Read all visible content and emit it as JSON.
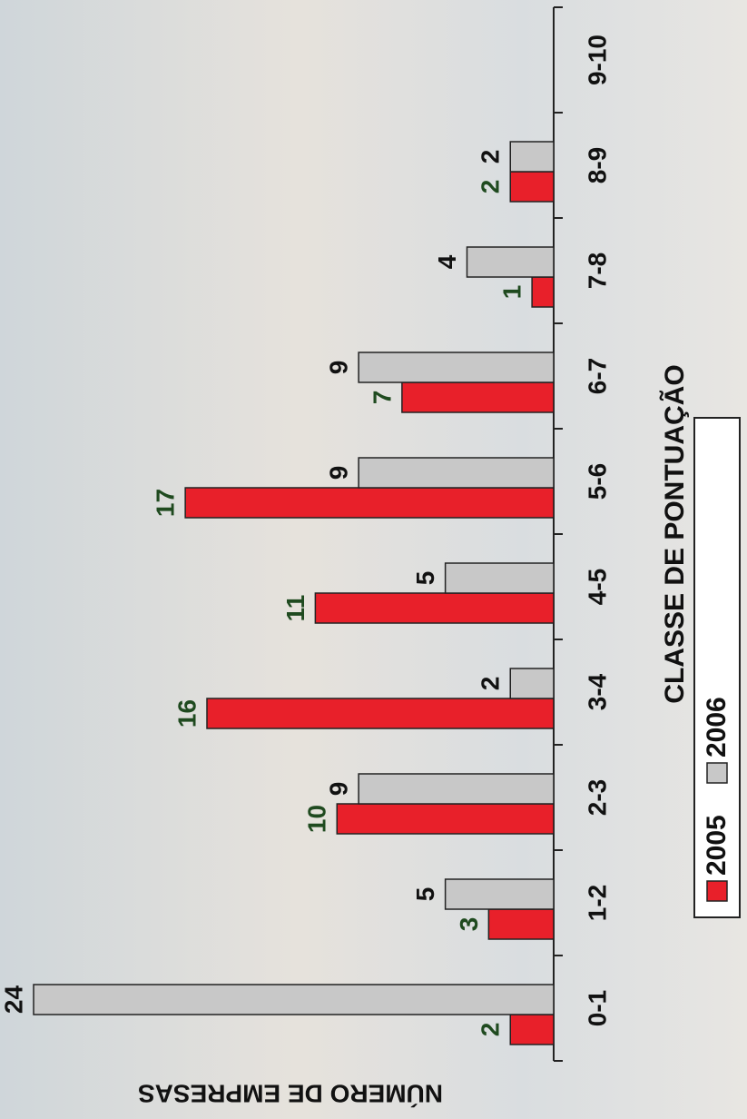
{
  "chart_data": {
    "type": "bar",
    "x_label": "CLASSE DE PONTUAÇÃO",
    "y_label": "NÚMERO DE EMPRESAS",
    "categories": [
      "0-1",
      "1-2",
      "2-3",
      "3-4",
      "4-5",
      "5-6",
      "6-7",
      "7-8",
      "8-9",
      "9-10"
    ],
    "series": [
      {
        "name": "2005",
        "color": "#e8202a",
        "label_color": "#1f4a1f",
        "values": [
          2,
          3,
          10,
          16,
          11,
          17,
          7,
          1,
          2,
          null
        ]
      },
      {
        "name": "2006",
        "color": "#c8c8c8",
        "label_color": "#111111",
        "values": [
          24,
          5,
          9,
          2,
          5,
          9,
          9,
          4,
          2,
          null
        ]
      }
    ]
  }
}
